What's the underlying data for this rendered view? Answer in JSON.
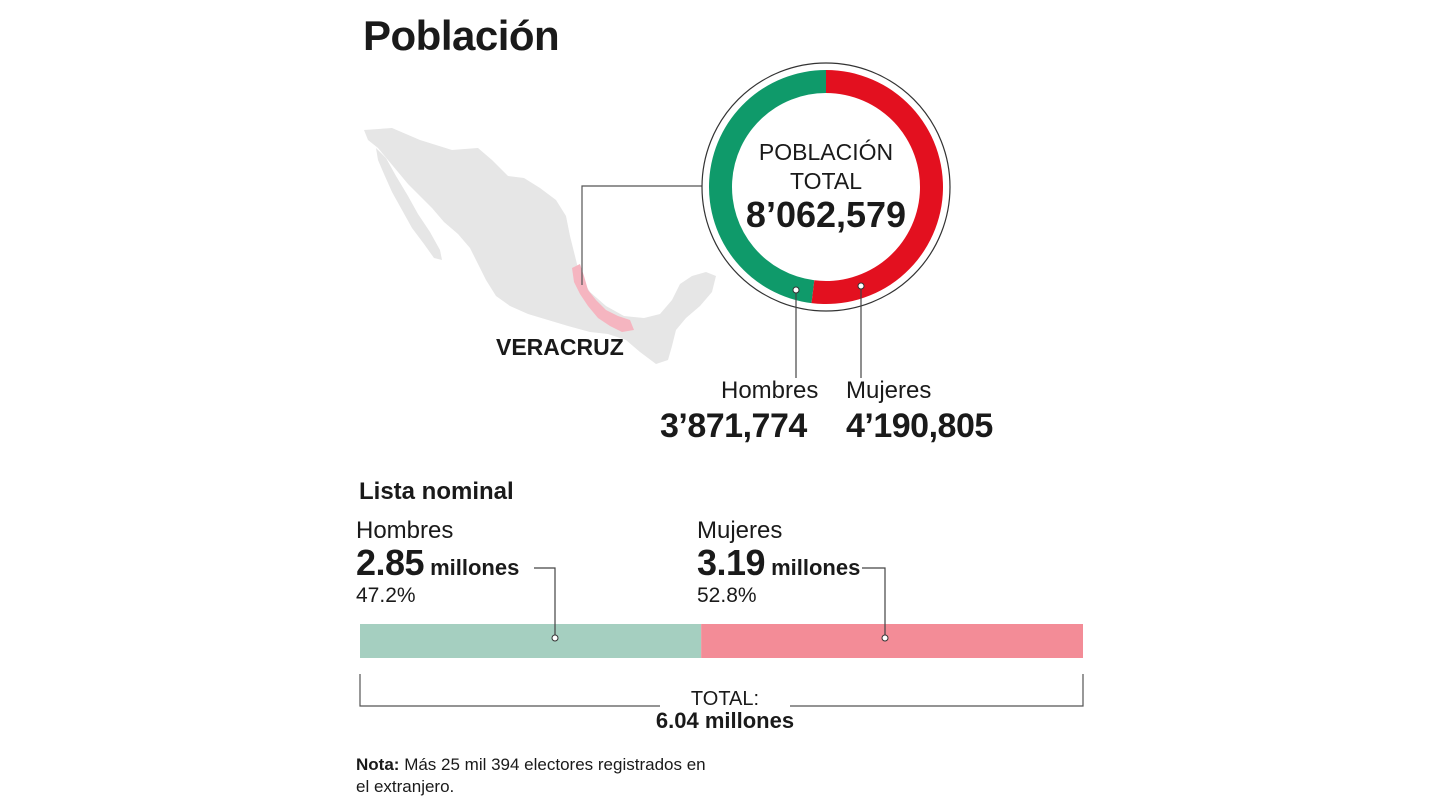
{
  "title": "Población",
  "map": {
    "state_label": "VERACRUZ",
    "base_color": "#e6e6e6",
    "highlight_color": "#f5b5c0"
  },
  "poblacion": {
    "label_line1": "POBLACIÓN",
    "label_line2": "TOTAL",
    "total": "8’062,579",
    "hombres_label": "Hombres",
    "hombres_value": "3’871,774",
    "mujeres_label": "Mujeres",
    "mujeres_value": "4’190,805"
  },
  "lista_nominal": {
    "title": "Lista nominal",
    "hombres": {
      "label": "Hombres",
      "value": "2.85",
      "unit": "millones",
      "pct": "47.2%"
    },
    "mujeres": {
      "label": "Mujeres",
      "value": "3.19",
      "unit": "millones",
      "pct": "52.8%"
    },
    "total_label": "TOTAL:",
    "total_value": "6.04 millones"
  },
  "note": {
    "bold": "Nota:",
    "text": "Más 25 mil 394 electores registrados en el extranjero."
  },
  "colors": {
    "green": "#0f9a6a",
    "red": "#e3101f",
    "bar_green": "#a5cfc0",
    "bar_red": "#f38c97"
  },
  "chart_data": [
    {
      "type": "pie",
      "categories": [
        "Hombres",
        "Mujeres"
      ],
      "values": [
        3871774,
        4190805
      ],
      "colors": [
        "#0f9a6a",
        "#e3101f"
      ]
    },
    {
      "type": "bar",
      "title": "Lista nominal",
      "categories": [
        "Hombres",
        "Mujeres"
      ],
      "values": [
        2.85,
        3.19
      ],
      "percent": [
        47.2,
        52.8
      ],
      "colors": [
        "#a5cfc0",
        "#f38c97"
      ]
    }
  ]
}
